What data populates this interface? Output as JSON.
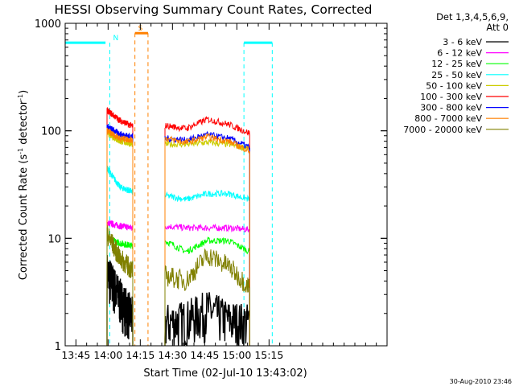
{
  "chart_data": {
    "type": "line",
    "title": "HESSI Observing Summary Count Rates, Corrected",
    "xlabel": "Start Time (02-Jul-10 13:43:02)",
    "ylabel_main": "Corrected Count Rate (s",
    "ylabel_sup1": "-1",
    "ylabel_mid": " detector",
    "ylabel_sup2": "-1",
    "ylabel_end": ")",
    "footer": "30-Aug-2010 23:46",
    "y_scale": "log",
    "ylim": [
      1,
      1000
    ],
    "x_start_min": 820,
    "x_end_min": 970,
    "x_tick_labels": [
      {
        "label": "13:45",
        "min": 825
      },
      {
        "label": "14:00",
        "min": 840
      },
      {
        "label": "14:15",
        "min": 855
      },
      {
        "label": "14:30",
        "min": 870
      },
      {
        "label": "14:45",
        "min": 885
      },
      {
        "label": "15:00",
        "min": 900
      },
      {
        "label": "15:15",
        "min": 915
      }
    ],
    "y_tick_labels": [
      {
        "label": "1",
        "value": 1
      },
      {
        "label": "10",
        "value": 10
      },
      {
        "label": "100",
        "value": 100
      },
      {
        "label": "1000",
        "value": 1000
      }
    ],
    "legend_title": [
      "Det 1,3,4,5,6,9,",
      "Att 0"
    ],
    "legend_placement": "right",
    "series": [
      {
        "name": "3 - 6 keV",
        "color": "#000000"
      },
      {
        "name": "6 - 12 keV",
        "color": "#ff00ff"
      },
      {
        "name": "12 - 25 keV",
        "color": "#00ff00"
      },
      {
        "name": "25 - 50 keV",
        "color": "#00ffff"
      },
      {
        "name": "50 - 100 keV",
        "color": "#cccc00"
      },
      {
        "name": "100 - 300 keV",
        "color": "#ff0000"
      },
      {
        "name": "300 - 800 keV",
        "color": "#0000ff"
      },
      {
        "name": "800 - 7000 keV",
        "color": "#ff8000"
      },
      {
        "name": "7000 - 20000 keV",
        "color": "#808000"
      }
    ],
    "segments": [
      {
        "start": 839.5,
        "end": 851.5,
        "levels": {
          "3 - 6 keV": [
            4.5,
            2.6,
            1.7
          ],
          "6 - 12 keV": [
            14,
            13,
            12.5
          ],
          "12 - 25 keV": [
            10,
            9,
            8.5
          ],
          "25 - 50 keV": [
            45,
            30,
            27
          ],
          "50 - 100 keV": [
            95,
            80,
            75
          ],
          "100 - 300 keV": [
            155,
            125,
            110
          ],
          "300 - 800 keV": [
            110,
            93,
            88
          ],
          "800 - 7000 keV": [
            100,
            85,
            82
          ],
          "7000 - 20000 keV": [
            11,
            6.5,
            5
          ]
        }
      },
      {
        "start": 866.5,
        "end": 906,
        "levels": {
          "3 - 6 keV": [
            1.5,
            1.6,
            2.0,
            1.6,
            1.5
          ],
          "6 - 12 keV": [
            13,
            12.5,
            12.5,
            12.5,
            12
          ],
          "12 - 25 keV": [
            9.5,
            7.5,
            9.5,
            9.5,
            7.5
          ],
          "25 - 50 keV": [
            25,
            23,
            26,
            26,
            23
          ],
          "50 - 100 keV": [
            75,
            75,
            78,
            75,
            68
          ],
          "100 - 300 keV": [
            112,
            105,
            128,
            115,
            95
          ],
          "300 - 800 keV": [
            85,
            82,
            92,
            85,
            70
          ],
          "800 - 7000 keV": [
            85,
            78,
            88,
            80,
            65
          ],
          "7000 - 20000 keV": [
            4.5,
            4,
            7,
            5.5,
            3.5
          ]
        }
      }
    ],
    "flags": [
      {
        "label": "N",
        "color": "#00ffff",
        "level": 660,
        "bars": [
          [
            820,
            838.8
          ],
          [
            903.3,
            916.5
          ]
        ],
        "lines": [
          840.8,
          903.3,
          916.5
        ]
      },
      {
        "label": "S",
        "color": "#ff8000",
        "level": 810,
        "bars": [
          [
            852.5,
            858.6
          ]
        ],
        "lines": [
          852.5,
          858.6
        ]
      }
    ]
  }
}
